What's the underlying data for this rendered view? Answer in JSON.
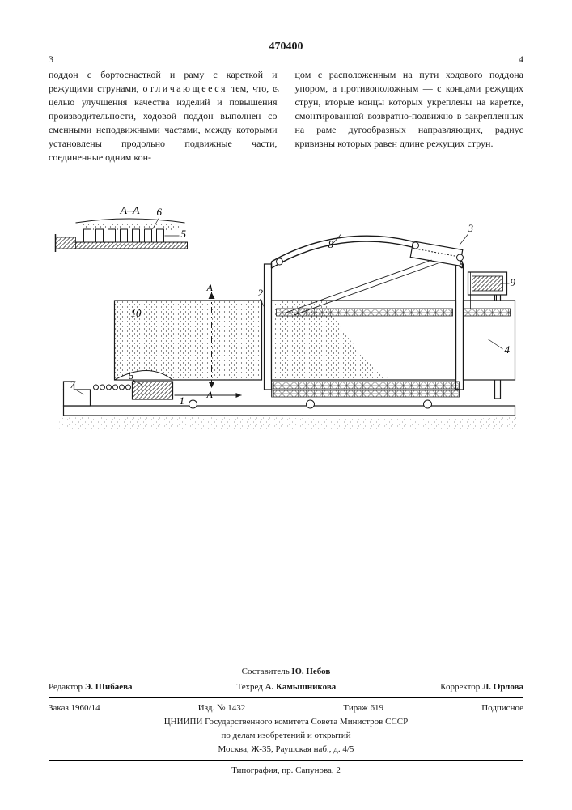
{
  "doc_number": "470400",
  "page_left": "3",
  "page_right": "4",
  "line_marker": "5",
  "col_left": "поддон с бортоснасткой и раму с кареткой и режущими струнами, отличающееся тем, что, с целью улучшения качества изделий и повышения производительности, ходовой поддон выполнен со сменными неподвижными частями, между которыми установлены продольно подвижные части, соединенные одним кон-",
  "col_right": "цом с расположенным на пути ходового поддона упором, а противоположным — с концами режущих струн, вторые концы которых укреплены на каретке, смонтированной возвратно-подвижно в закрепленных на раме дугообразных направляющих, радиус кривизны которых равен длине режущих струн.",
  "figure": {
    "labels": {
      "AA": "А–А",
      "r1": "1",
      "r2": "2",
      "r3": "3",
      "r4": "4",
      "r5": "5",
      "r6": "6",
      "r7": "7",
      "r8": "8",
      "r9": "9",
      "r10": "10"
    },
    "colors": {
      "stroke": "#1a1a1a",
      "dots": "#2a2a2a",
      "hatch": "#1a1a1a"
    }
  },
  "colophon": {
    "compiler_label": "Составитель",
    "compiler": "Ю. Небов",
    "editor_label": "Редактор",
    "editor": "Э. Шибаева",
    "techred_label": "Техред",
    "techred": "А. Камышникова",
    "corrector_label": "Корректор",
    "corrector": "Л. Орлова",
    "order": "Заказ 1960/14",
    "izd": "Изд. № 1432",
    "tirazh": "Тираж 619",
    "sign": "Подписное",
    "org1": "ЦНИИПИ Государственного комитета Совета Министров СССР",
    "org2": "по делам изобретений и открытий",
    "addr": "Москва, Ж-35, Раушская наб., д. 4/5",
    "print": "Типография, пр. Сапунова, 2"
  }
}
